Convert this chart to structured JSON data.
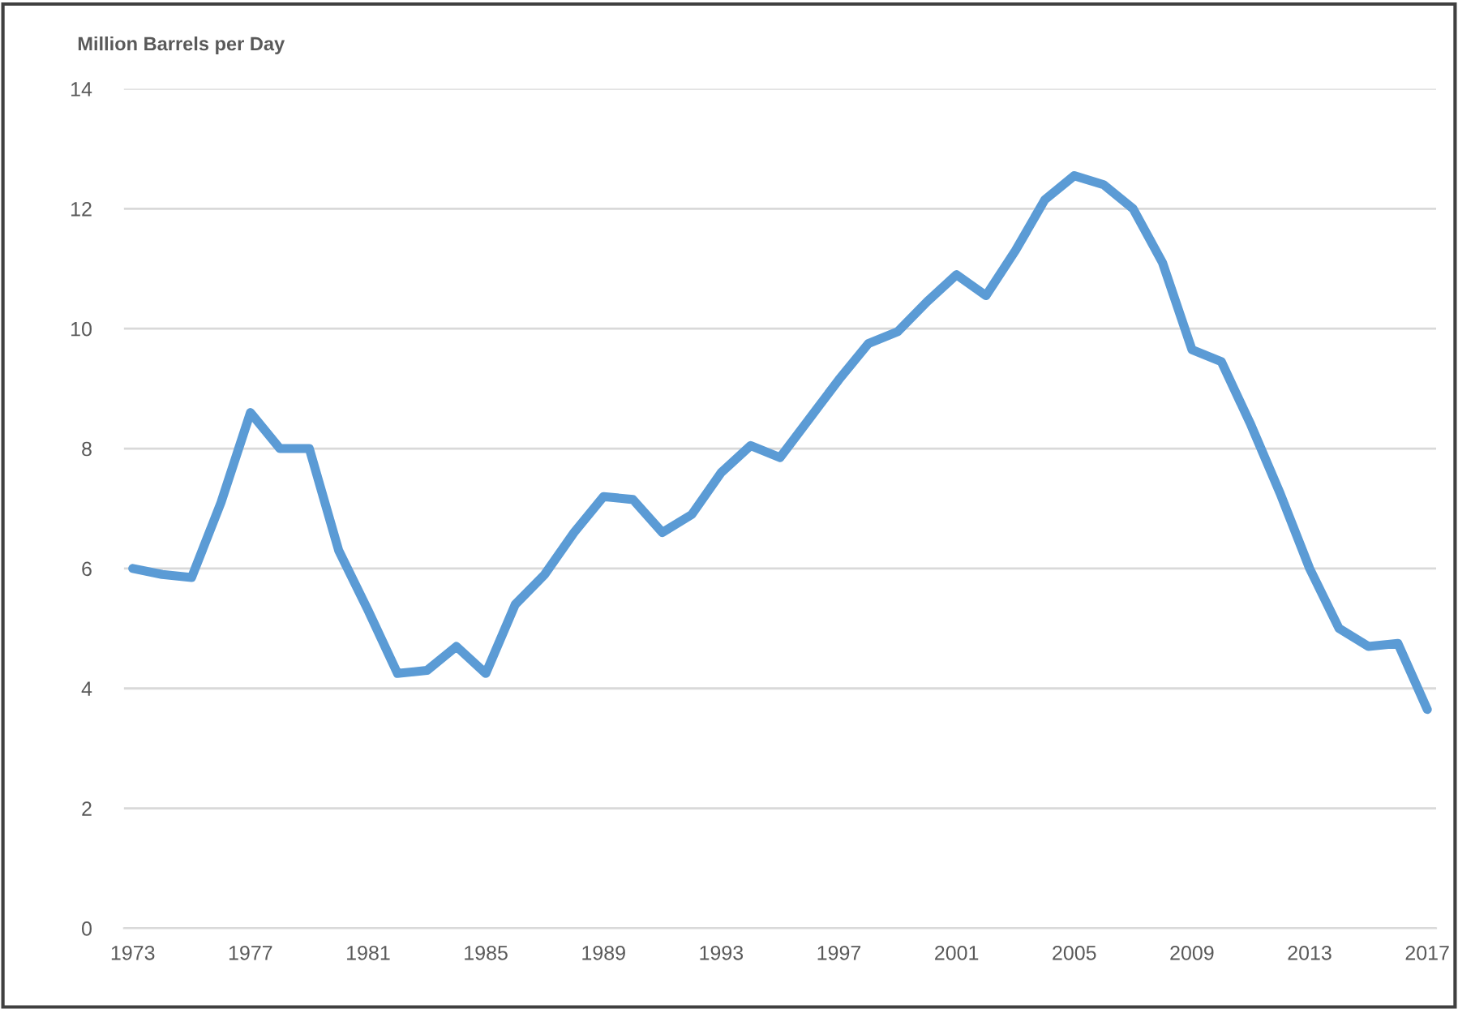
{
  "chart_data": {
    "type": "line",
    "ylabel": "Million Barrels per Day",
    "categories": [
      "1973",
      null,
      null,
      null,
      "1977",
      null,
      null,
      null,
      "1981",
      null,
      null,
      null,
      "1985",
      null,
      null,
      null,
      "1989",
      null,
      null,
      null,
      "1993",
      null,
      null,
      null,
      "1997",
      null,
      null,
      null,
      "2001",
      null,
      null,
      null,
      "2005",
      null,
      null,
      null,
      "2009",
      null,
      null,
      null,
      "2013",
      null,
      null,
      null,
      "2017"
    ],
    "series": [
      {
        "color": "#5b9bd5",
        "values": [
          6.0,
          5.9,
          5.85,
          7.1,
          8.6,
          8.0,
          8.0,
          6.3,
          5.3,
          4.25,
          4.3,
          4.7,
          4.25,
          5.4,
          5.9,
          6.6,
          7.2,
          7.15,
          6.6,
          6.9,
          7.6,
          8.05,
          7.85,
          8.5,
          9.15,
          9.75,
          9.95,
          10.45,
          10.9,
          10.55,
          11.3,
          12.15,
          12.55,
          12.4,
          12.0,
          11.1,
          9.65,
          9.45,
          8.4,
          7.25,
          6.0,
          5.0,
          4.7,
          4.75,
          3.65
        ]
      }
    ],
    "ylim": [
      0,
      14
    ],
    "yticks": [
      0,
      2,
      4,
      6,
      8,
      10,
      12,
      14
    ],
    "grid": "y",
    "marker": "none",
    "line_style": "solid"
  }
}
